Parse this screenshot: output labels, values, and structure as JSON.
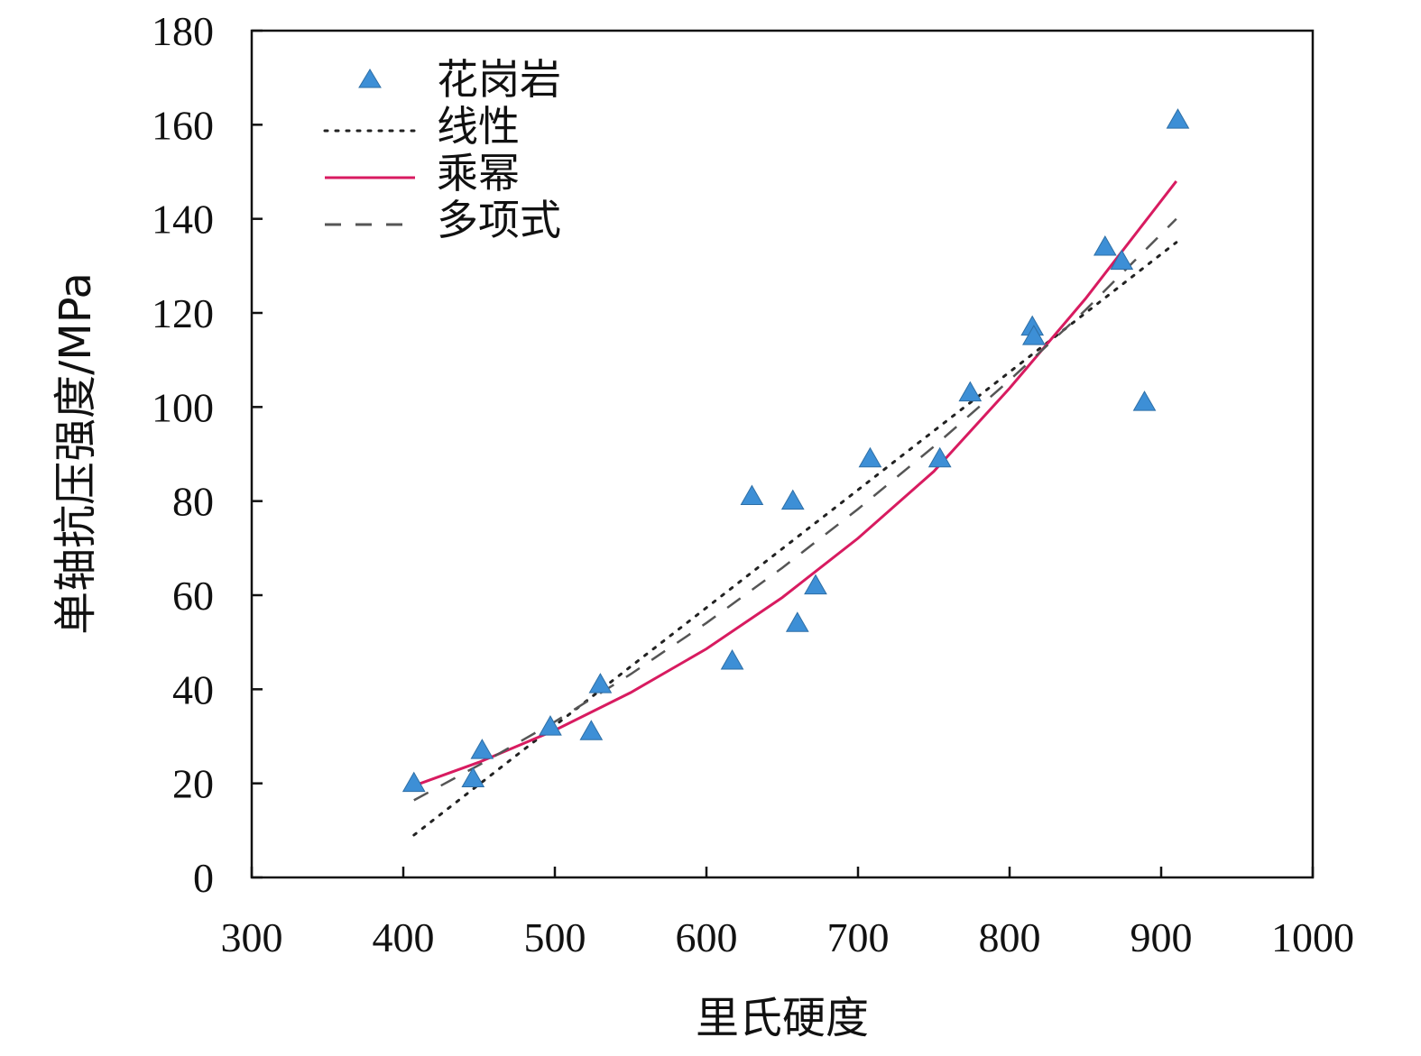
{
  "chart_data": {
    "type": "scatter",
    "xlabel": "里氏硬度",
    "ylabel": "单轴抗压强度/MPa",
    "xlim": [
      300,
      1000
    ],
    "ylim": [
      0,
      180
    ],
    "xticks": [
      300,
      400,
      500,
      600,
      700,
      800,
      900,
      1000
    ],
    "yticks": [
      0,
      20,
      40,
      60,
      80,
      100,
      120,
      140,
      160,
      180
    ],
    "xtick_labels": [
      "300",
      "400",
      "500",
      "600",
      "700",
      "800",
      "900",
      "1000"
    ],
    "ytick_labels": [
      "0",
      "20",
      "40",
      "60",
      "80",
      "100",
      "120",
      "140",
      "160",
      "180"
    ],
    "grid": false,
    "legend_position": "top-left",
    "colors": {
      "points": "#3d8fd6",
      "linear": "#222222",
      "power": "#d81b60",
      "polynomial": "#555555"
    },
    "series": [
      {
        "name": "花岗岩",
        "type": "scatter",
        "x": [
          407,
          446,
          452,
          497,
          524,
          530,
          617,
          630,
          657,
          660,
          672,
          708,
          754,
          774,
          815,
          816,
          863,
          874,
          889,
          911
        ],
        "y": [
          20,
          21,
          27,
          32,
          31,
          41,
          46,
          81,
          80,
          54,
          62,
          89,
          89,
          103,
          117,
          115,
          134,
          131,
          101,
          161
        ]
      },
      {
        "name": "线性",
        "type": "line",
        "style": "dotted",
        "x": [
          407,
          910
        ],
        "y": [
          9,
          135
        ]
      },
      {
        "name": "乘幂",
        "type": "line",
        "style": "solid",
        "x": [
          407,
          450,
          500,
          550,
          600,
          650,
          700,
          750,
          800,
          850,
          910
        ],
        "y": [
          19.5,
          24.5,
          31.3,
          39.3,
          48.6,
          59.5,
          72.1,
          86.3,
          104.0,
          123.0,
          148.0
        ]
      },
      {
        "name": "多项式",
        "type": "line",
        "style": "dashed",
        "x": [
          407,
          450,
          500,
          550,
          600,
          650,
          700,
          750,
          800,
          850,
          910
        ],
        "y": [
          16.4,
          23.9,
          33.1,
          43.2,
          54.1,
          65.8,
          78.3,
          91.6,
          105.7,
          120.6,
          140.0
        ]
      }
    ]
  }
}
